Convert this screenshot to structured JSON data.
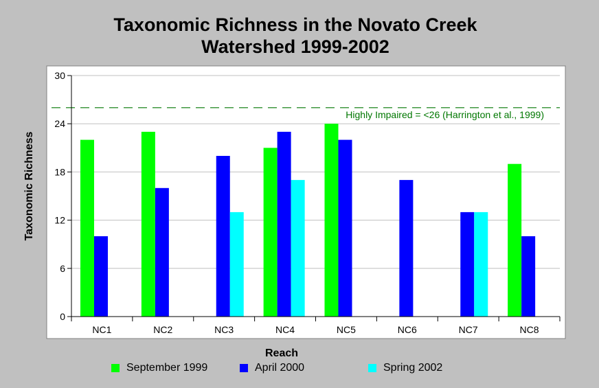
{
  "chart_data": {
    "type": "bar",
    "title_line1": "Taxonomic Richness in the Novato Creek",
    "title_line2": "Watershed 1999-2002",
    "xlabel": "Reach",
    "ylabel": "Taxonomic Richness",
    "ylim": [
      0,
      30
    ],
    "yticks": [
      "0",
      "6",
      "12",
      "18",
      "24",
      "30"
    ],
    "categories": [
      "NC1",
      "NC2",
      "NC3",
      "NC4",
      "NC5",
      "NC6",
      "NC7",
      "NC8"
    ],
    "series": [
      {
        "name": "September 1999",
        "color": "#00ff00",
        "values": [
          22,
          23,
          null,
          21,
          24,
          null,
          null,
          19
        ]
      },
      {
        "name": "April 2000",
        "color": "#0000ff",
        "values": [
          10,
          16,
          20,
          23,
          22,
          17,
          13,
          10
        ]
      },
      {
        "name": "Spring 2002",
        "color": "#00ffff",
        "values": [
          null,
          null,
          13,
          17,
          null,
          null,
          13,
          null
        ]
      }
    ],
    "reference_line": {
      "value": 26,
      "label": "Highly Impaired = <26 (Harrington et al., 1999)",
      "color": "#007700"
    },
    "grid": true,
    "legend_position": "bottom"
  }
}
